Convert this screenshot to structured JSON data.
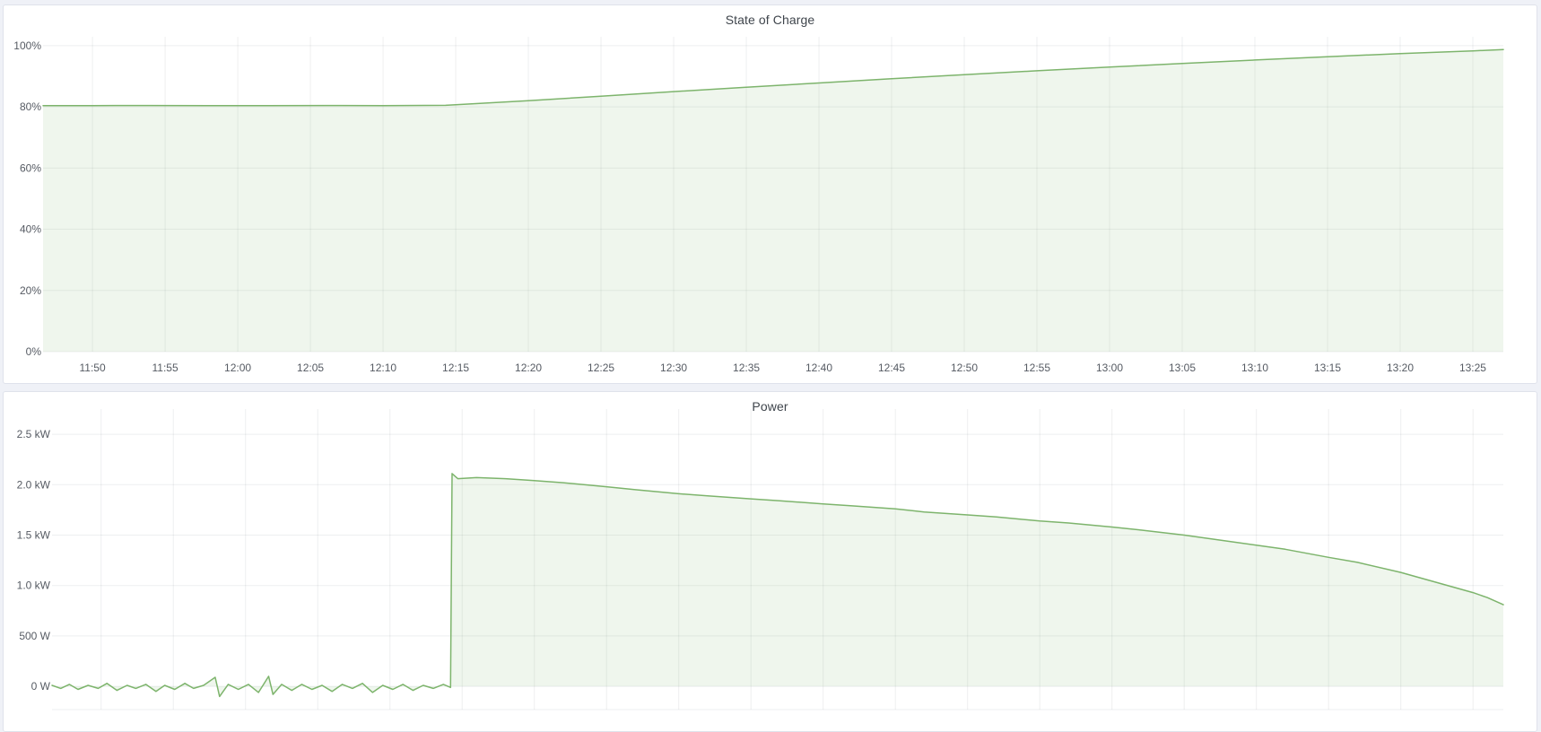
{
  "colors": {
    "series_green": "#7db46c",
    "series_fill": "rgba(126,178,109,0.12)",
    "grid": "rgba(40,48,60,0.08)",
    "tick_text": "#565b63",
    "title_text": "#3f454c",
    "panel_bg": "#ffffff",
    "panel_border": "#dfe2eb",
    "page_bg": "#eff1f7"
  },
  "chart_data": [
    {
      "id": "soc",
      "type": "area",
      "title": "State of Charge",
      "xlabel": "",
      "ylabel": "",
      "x_unit": "time (HH:MM), stored as minutes since midnight",
      "x_domain_minutes": [
        706.6,
        807.1
      ],
      "y_domain": [
        0,
        102.9
      ],
      "x_labels_visible": true,
      "x_ticks": [
        {
          "m": 710,
          "label": "11:50"
        },
        {
          "m": 715,
          "label": "11:55"
        },
        {
          "m": 720,
          "label": "12:00"
        },
        {
          "m": 725,
          "label": "12:05"
        },
        {
          "m": 730,
          "label": "12:10"
        },
        {
          "m": 735,
          "label": "12:15"
        },
        {
          "m": 740,
          "label": "12:20"
        },
        {
          "m": 745,
          "label": "12:25"
        },
        {
          "m": 750,
          "label": "12:30"
        },
        {
          "m": 755,
          "label": "12:35"
        },
        {
          "m": 760,
          "label": "12:40"
        },
        {
          "m": 765,
          "label": "12:45"
        },
        {
          "m": 770,
          "label": "12:50"
        },
        {
          "m": 775,
          "label": "12:55"
        },
        {
          "m": 780,
          "label": "13:00"
        },
        {
          "m": 785,
          "label": "13:05"
        },
        {
          "m": 790,
          "label": "13:10"
        },
        {
          "m": 795,
          "label": "13:15"
        },
        {
          "m": 800,
          "label": "13:20"
        },
        {
          "m": 805,
          "label": "13:25"
        }
      ],
      "y_ticks": [
        {
          "v": 0,
          "label": "0%"
        },
        {
          "v": 20,
          "label": "20%"
        },
        {
          "v": 40,
          "label": "40%"
        },
        {
          "v": 60,
          "label": "60%"
        },
        {
          "v": 80,
          "label": "80%"
        },
        {
          "v": 100,
          "label": "100%"
        }
      ],
      "points": [
        [
          706.6,
          80.4
        ],
        [
          710,
          80.4
        ],
        [
          714,
          80.45
        ],
        [
          718,
          80.4
        ],
        [
          722,
          80.4
        ],
        [
          726,
          80.45
        ],
        [
          730,
          80.4
        ],
        [
          734.3,
          80.5
        ],
        [
          735,
          80.7
        ],
        [
          740,
          82.0
        ],
        [
          745,
          83.5
        ],
        [
          750,
          85.0
        ],
        [
          755,
          86.4
        ],
        [
          760,
          87.8
        ],
        [
          765,
          89.2
        ],
        [
          770,
          90.5
        ],
        [
          775,
          91.8
        ],
        [
          780,
          93.0
        ],
        [
          785,
          94.2
        ],
        [
          790,
          95.3
        ],
        [
          795,
          96.4
        ],
        [
          800,
          97.4
        ],
        [
          805,
          98.3
        ],
        [
          807.1,
          98.7
        ]
      ]
    },
    {
      "id": "power",
      "type": "area",
      "title": "Power",
      "xlabel": "",
      "ylabel": "",
      "x_unit": "time (HH:MM), stored as minutes since midnight",
      "y_unit": "kW",
      "x_domain_minutes": [
        706.6,
        807.1
      ],
      "y_domain": [
        -0.23,
        2.75
      ],
      "x_labels_visible": false,
      "x_ticks": [
        {
          "m": 710
        },
        {
          "m": 715
        },
        {
          "m": 720
        },
        {
          "m": 725
        },
        {
          "m": 730
        },
        {
          "m": 735
        },
        {
          "m": 740
        },
        {
          "m": 745
        },
        {
          "m": 750
        },
        {
          "m": 755
        },
        {
          "m": 760
        },
        {
          "m": 765
        },
        {
          "m": 770
        },
        {
          "m": 775
        },
        {
          "m": 780
        },
        {
          "m": 785
        },
        {
          "m": 790
        },
        {
          "m": 795
        },
        {
          "m": 800
        },
        {
          "m": 805
        }
      ],
      "y_ticks": [
        {
          "v": 0,
          "label": "0 W"
        },
        {
          "v": 0.5,
          "label": "500 W"
        },
        {
          "v": 1.0,
          "label": "1.0 kW"
        },
        {
          "v": 1.5,
          "label": "1.5 kW"
        },
        {
          "v": 2.0,
          "label": "2.0 kW"
        },
        {
          "v": 2.5,
          "label": "2.5 kW"
        }
      ],
      "points": [
        [
          706.6,
          0.01
        ],
        [
          707.2,
          -0.02
        ],
        [
          707.8,
          0.02
        ],
        [
          708.4,
          -0.03
        ],
        [
          709.1,
          0.01
        ],
        [
          709.8,
          -0.02
        ],
        [
          710.4,
          0.03
        ],
        [
          711.1,
          -0.04
        ],
        [
          711.8,
          0.01
        ],
        [
          712.4,
          -0.02
        ],
        [
          713.1,
          0.02
        ],
        [
          713.8,
          -0.05
        ],
        [
          714.4,
          0.01
        ],
        [
          715.1,
          -0.03
        ],
        [
          715.8,
          0.03
        ],
        [
          716.4,
          -0.02
        ],
        [
          717.1,
          0.01
        ],
        [
          717.9,
          0.09
        ],
        [
          718.2,
          -0.1
        ],
        [
          718.8,
          0.02
        ],
        [
          719.5,
          -0.03
        ],
        [
          720.2,
          0.02
        ],
        [
          720.9,
          -0.06
        ],
        [
          721.6,
          0.1
        ],
        [
          721.9,
          -0.08
        ],
        [
          722.5,
          0.02
        ],
        [
          723.2,
          -0.04
        ],
        [
          723.9,
          0.02
        ],
        [
          724.6,
          -0.03
        ],
        [
          725.3,
          0.01
        ],
        [
          726.0,
          -0.05
        ],
        [
          726.7,
          0.02
        ],
        [
          727.4,
          -0.02
        ],
        [
          728.1,
          0.03
        ],
        [
          728.8,
          -0.06
        ],
        [
          729.5,
          0.01
        ],
        [
          730.2,
          -0.03
        ],
        [
          730.9,
          0.02
        ],
        [
          731.6,
          -0.04
        ],
        [
          732.3,
          0.01
        ],
        [
          733.0,
          -0.02
        ],
        [
          733.7,
          0.02
        ],
        [
          734.2,
          -0.01
        ],
        [
          734.3,
          2.11
        ],
        [
          734.7,
          2.06
        ],
        [
          736,
          2.07
        ],
        [
          738,
          2.06
        ],
        [
          740,
          2.04
        ],
        [
          742,
          2.02
        ],
        [
          745,
          1.98
        ],
        [
          747,
          1.95
        ],
        [
          750,
          1.91
        ],
        [
          752,
          1.89
        ],
        [
          755,
          1.86
        ],
        [
          757,
          1.84
        ],
        [
          760,
          1.81
        ],
        [
          762,
          1.79
        ],
        [
          765,
          1.76
        ],
        [
          767,
          1.73
        ],
        [
          770,
          1.7
        ],
        [
          772,
          1.68
        ],
        [
          775,
          1.64
        ],
        [
          777,
          1.62
        ],
        [
          780,
          1.58
        ],
        [
          782,
          1.55
        ],
        [
          785,
          1.5
        ],
        [
          787,
          1.46
        ],
        [
          790,
          1.4
        ],
        [
          792,
          1.36
        ],
        [
          795,
          1.28
        ],
        [
          797,
          1.23
        ],
        [
          800,
          1.13
        ],
        [
          802,
          1.05
        ],
        [
          805,
          0.93
        ],
        [
          806,
          0.88
        ],
        [
          807.1,
          0.81
        ]
      ]
    }
  ]
}
